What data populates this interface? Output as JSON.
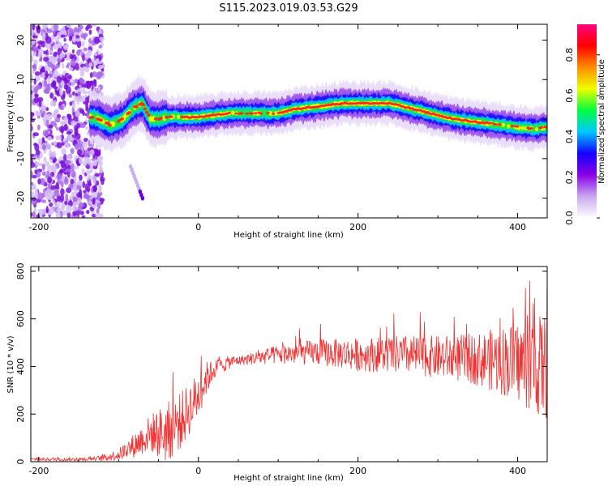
{
  "title": "S115.2023.019.03.53.G29",
  "chart_data": [
    {
      "type": "heatmap",
      "xlabel": "Height of straight line (km)",
      "ylabel": "Frequency (Hz)",
      "xlim": [
        -210,
        437
      ],
      "ylim": [
        -25,
        24
      ],
      "x_ticks": [
        -200,
        0,
        200,
        400
      ],
      "y_ticks": [
        -20,
        -10,
        0,
        10,
        20
      ],
      "colorbar": {
        "label": "Normalized spectral amplitude",
        "range": [
          0,
          1
        ],
        "ticks": [
          "0.0",
          "0.2",
          "0.4",
          "0.6",
          "0.8"
        ],
        "stops": [
          "#ffffff",
          "#c9a8f0",
          "#8a00e6",
          "#1400ff",
          "#00c8ff",
          "#00ff40",
          "#f0ff00",
          "#ff8c00",
          "#ff0000",
          "#ff0080"
        ]
      },
      "ridge": {
        "x": [
          -130,
          -110,
          -95,
          -80,
          -70,
          -60,
          -50,
          -40,
          -20,
          0,
          20,
          40,
          60,
          80,
          100,
          120,
          140,
          160,
          180,
          200,
          220,
          240,
          260,
          280,
          300,
          320,
          340,
          360,
          380,
          400,
          420,
          437
        ],
        "y": [
          0.5,
          -1.5,
          0,
          3,
          4,
          0,
          0,
          0.5,
          0.5,
          0.5,
          1,
          1.5,
          1.5,
          1.5,
          1.5,
          2.5,
          3,
          3.5,
          4,
          4,
          4,
          4,
          3,
          2,
          1,
          0,
          -0.5,
          -1,
          -1.5,
          -2,
          -2.5,
          -2
        ]
      },
      "noise_region_x": [
        -210,
        -120
      ],
      "faint_trace": {
        "x": [
          -85,
          -70
        ],
        "y": [
          -12,
          -20
        ]
      },
      "grid": false
    },
    {
      "type": "line",
      "xlabel": "Height of straight line (km)",
      "ylabel": "SNR (10 * v/v)",
      "xlim": [
        -210,
        437
      ],
      "ylim": [
        0,
        820
      ],
      "x_ticks": [
        -200,
        0,
        200,
        400
      ],
      "y_ticks": [
        0,
        200,
        400,
        600,
        800
      ],
      "series": [
        {
          "color": "#f03232",
          "envelope": {
            "x": [
              -210,
              -150,
              -120,
              -100,
              -80,
              -60,
              -40,
              -20,
              0,
              10,
              20,
              40,
              60,
              80,
              100,
              150,
              200,
              250,
              300,
              350,
              400,
              420,
              437
            ],
            "y": [
              10,
              10,
              15,
              30,
              70,
              120,
              120,
              180,
              280,
              350,
              390,
              420,
              430,
              440,
              450,
              460,
              450,
              450,
              440,
              430,
              420,
              400,
              400
            ]
          },
          "noise_amplitude": {
            "x": [
              -210,
              -130,
              -100,
              -60,
              -40,
              -20,
              0,
              20,
              50,
              100,
              200,
              300,
              350,
              400,
              437
            ],
            "y": [
              6,
              8,
              25,
              80,
              130,
              120,
              100,
              40,
              20,
              40,
              70,
              90,
              110,
              170,
              230
            ]
          }
        }
      ],
      "grid": false
    }
  ]
}
